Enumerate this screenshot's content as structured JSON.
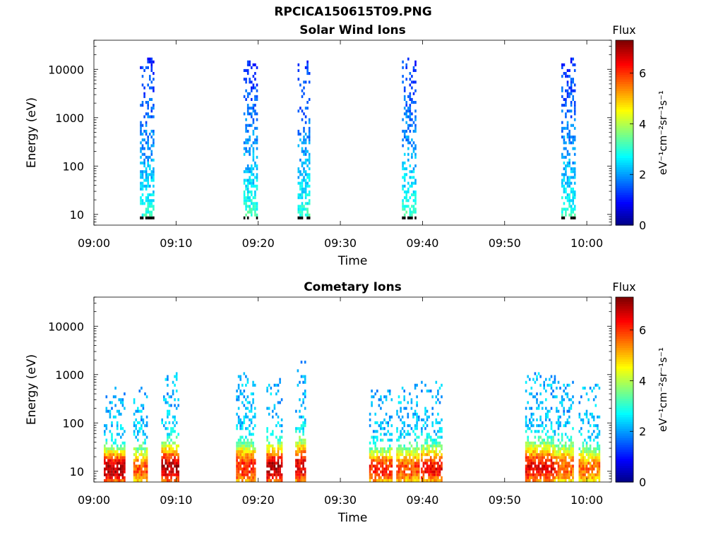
{
  "figure": {
    "suptitle": "RPCICA150615T09.PNG"
  },
  "chart_data": [
    {
      "type": "heatmap",
      "title": "Solar Wind Ions",
      "xlabel": "Time",
      "ylabel": "Energy (eV)",
      "x_tick_labels": [
        "09:00",
        "09:10",
        "09:20",
        "09:30",
        "09:40",
        "09:50",
        "10:00"
      ],
      "x_tick_minutes": [
        0,
        10,
        20,
        30,
        40,
        50,
        60
      ],
      "xlim_minutes": [
        0,
        63
      ],
      "y_scale": "log",
      "y_tick_labels": [
        "10",
        "100",
        "1000",
        "10000"
      ],
      "y_tick_values": [
        10,
        100,
        1000,
        10000
      ],
      "ylim": [
        6,
        40000
      ],
      "colorbar": {
        "label_top": "Flux",
        "label_units": "eV⁻¹cm⁻²sr⁻¹s⁻¹",
        "ticks": [
          "0",
          "2",
          "4",
          "6"
        ],
        "range": [
          0,
          7.3
        ],
        "colormap": "jet"
      },
      "bursts": [
        {
          "t_start": 5.6,
          "t_end": 7.2,
          "e_min": 8,
          "e_max": 16000,
          "flux_low_energy": 3.2,
          "flux_high_energy": 1.2
        },
        {
          "t_start": 18.2,
          "t_end": 19.8,
          "e_min": 8,
          "e_max": 14000,
          "flux_low_energy": 3.4,
          "flux_high_energy": 1.2
        },
        {
          "t_start": 24.8,
          "t_end": 26.3,
          "e_min": 8,
          "e_max": 14000,
          "flux_low_energy": 3.3,
          "flux_high_energy": 1.2
        },
        {
          "t_start": 37.5,
          "t_end": 39.2,
          "e_min": 8,
          "e_max": 16000,
          "flux_low_energy": 3.4,
          "flux_high_energy": 1.2
        },
        {
          "t_start": 56.9,
          "t_end": 58.6,
          "e_min": 8,
          "e_max": 16000,
          "flux_low_energy": 3.2,
          "flux_high_energy": 1.2
        }
      ]
    },
    {
      "type": "heatmap",
      "title": "Cometary Ions",
      "xlabel": "Time",
      "ylabel": "Energy (eV)",
      "x_tick_labels": [
        "09:00",
        "09:10",
        "09:20",
        "09:30",
        "09:40",
        "09:50",
        "10:00"
      ],
      "x_tick_minutes": [
        0,
        10,
        20,
        30,
        40,
        50,
        60
      ],
      "xlim_minutes": [
        0,
        63
      ],
      "y_scale": "log",
      "y_tick_labels": [
        "10",
        "100",
        "1000",
        "10000"
      ],
      "y_tick_values": [
        10,
        100,
        1000,
        10000
      ],
      "ylim": [
        6,
        40000
      ],
      "colorbar": {
        "label_top": "Flux",
        "label_units": "eV⁻¹cm⁻²sr⁻¹s⁻¹",
        "ticks": [
          "0",
          "2",
          "4",
          "6"
        ],
        "range": [
          0,
          7.3
        ],
        "colormap": "jet"
      },
      "bursts": [
        {
          "t_start": 1.2,
          "t_end": 3.8,
          "e_min": 6,
          "e_max": 500,
          "peak_flux": 7.0
        },
        {
          "t_start": 4.8,
          "t_end": 6.5,
          "e_min": 6,
          "e_max": 600,
          "peak_flux": 5.8
        },
        {
          "t_start": 8.2,
          "t_end": 10.4,
          "e_min": 6,
          "e_max": 1000,
          "peak_flux": 6.9
        },
        {
          "t_start": 17.3,
          "t_end": 19.5,
          "e_min": 6,
          "e_max": 1000,
          "peak_flux": 6.2
        },
        {
          "t_start": 21.0,
          "t_end": 22.8,
          "e_min": 6,
          "e_max": 800,
          "peak_flux": 7.0
        },
        {
          "t_start": 24.5,
          "t_end": 25.8,
          "e_min": 6,
          "e_max": 1700,
          "peak_flux": 6.6
        },
        {
          "t_start": 33.5,
          "t_end": 36.2,
          "e_min": 6,
          "e_max": 500,
          "peak_flux": 6.2
        },
        {
          "t_start": 36.8,
          "t_end": 39.5,
          "e_min": 6,
          "e_max": 600,
          "peak_flux": 5.9
        },
        {
          "t_start": 39.8,
          "t_end": 42.3,
          "e_min": 6,
          "e_max": 700,
          "peak_flux": 6.4
        },
        {
          "t_start": 52.5,
          "t_end": 55.8,
          "e_min": 6,
          "e_max": 1000,
          "peak_flux": 6.5
        },
        {
          "t_start": 56.0,
          "t_end": 58.2,
          "e_min": 6,
          "e_max": 900,
          "peak_flux": 5.8
        },
        {
          "t_start": 59.0,
          "t_end": 61.5,
          "e_min": 6,
          "e_max": 600,
          "peak_flux": 5.6
        }
      ]
    }
  ]
}
